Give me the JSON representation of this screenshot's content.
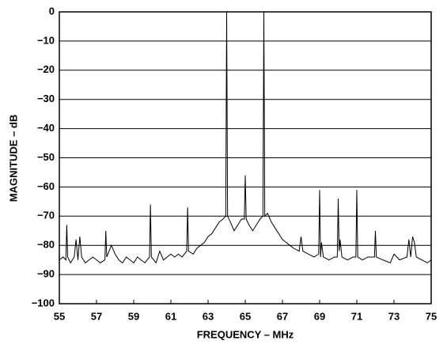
{
  "chart_data": {
    "type": "line",
    "xlabel": "FREQUENCY – MHz",
    "ylabel": "MAGNITUDE – dB",
    "xlim": [
      55,
      75
    ],
    "ylim": [
      -100,
      0
    ],
    "xticks": [
      55,
      57,
      59,
      61,
      63,
      65,
      67,
      69,
      71,
      73,
      75
    ],
    "yticks": [
      0,
      {
        "value": -10,
        "label": "−10"
      },
      {
        "value": -20,
        "label": "−20"
      },
      {
        "value": -30,
        "label": "−30"
      },
      {
        "value": -40,
        "label": "−40"
      },
      {
        "value": -50,
        "label": "−50"
      },
      {
        "value": -60,
        "label": "−60"
      },
      {
        "value": -70,
        "label": "−70"
      },
      {
        "value": -80,
        "label": "−80"
      },
      {
        "value": -90,
        "label": "−90"
      },
      {
        "value": -100,
        "label": "−100"
      }
    ],
    "grid": true,
    "color": "#000000",
    "x": [
      55.0,
      55.2,
      55.35,
      55.4,
      55.45,
      55.6,
      55.8,
      55.9,
      56.0,
      56.1,
      56.2,
      56.4,
      56.6,
      56.8,
      57.0,
      57.2,
      57.45,
      57.5,
      57.55,
      57.8,
      58.0,
      58.2,
      58.4,
      58.6,
      58.8,
      59.0,
      59.2,
      59.4,
      59.6,
      59.85,
      59.9,
      59.95,
      60.2,
      60.4,
      60.6,
      60.8,
      61.0,
      61.2,
      61.4,
      61.6,
      61.85,
      61.9,
      61.95,
      62.2,
      62.4,
      62.6,
      62.8,
      63.0,
      63.2,
      63.4,
      63.6,
      63.8,
      63.95,
      64.0,
      64.05,
      64.2,
      64.4,
      64.6,
      64.8,
      64.95,
      65.0,
      65.05,
      65.2,
      65.4,
      65.6,
      65.8,
      65.95,
      66.0,
      66.05,
      66.2,
      66.4,
      66.6,
      66.8,
      67.0,
      67.2,
      67.4,
      67.6,
      67.9,
      68.0,
      68.1,
      68.4,
      68.7,
      68.95,
      69.0,
      69.05,
      69.1,
      69.2,
      69.5,
      69.8,
      69.95,
      70.0,
      70.05,
      70.1,
      70.2,
      70.5,
      70.8,
      70.95,
      71.0,
      71.05,
      71.3,
      71.6,
      71.95,
      72.0,
      72.05,
      72.4,
      72.8,
      73.0,
      73.3,
      73.7,
      73.8,
      73.9,
      74.0,
      74.1,
      74.2,
      74.5,
      74.8,
      75.0
    ],
    "values": [
      -85,
      -84,
      -85,
      -73,
      -84,
      -86,
      -84,
      -78,
      -85,
      -77,
      -84,
      -86,
      -85,
      -84,
      -85,
      -86,
      -85,
      -75,
      -84,
      -80,
      -83,
      -85,
      -86,
      -84,
      -85,
      -86,
      -84,
      -85,
      -86,
      -84,
      -66,
      -84,
      -86,
      -82,
      -85,
      -84,
      -83,
      -84,
      -83,
      -84,
      -82,
      -67,
      -82,
      -83,
      -81,
      -80,
      -79,
      -77,
      -76,
      -74,
      -72,
      -71,
      -70,
      0,
      -70,
      -72,
      -75,
      -73,
      -71,
      -71,
      -56,
      -71,
      -73,
      -75,
      -73,
      -71,
      -70,
      0,
      -70,
      -69,
      -72,
      -74,
      -76,
      -78,
      -79,
      -80,
      -81,
      -82,
      -77,
      -82,
      -83,
      -84,
      -83,
      -61,
      -84,
      -79,
      -84,
      -85,
      -84,
      -84,
      -64,
      -82,
      -78,
      -84,
      -85,
      -84,
      -84,
      -61,
      -84,
      -85,
      -84,
      -84,
      -75,
      -84,
      -85,
      -86,
      -83,
      -85,
      -84,
      -78,
      -84,
      -77,
      -79,
      -84,
      -85,
      -86,
      -85
    ]
  }
}
